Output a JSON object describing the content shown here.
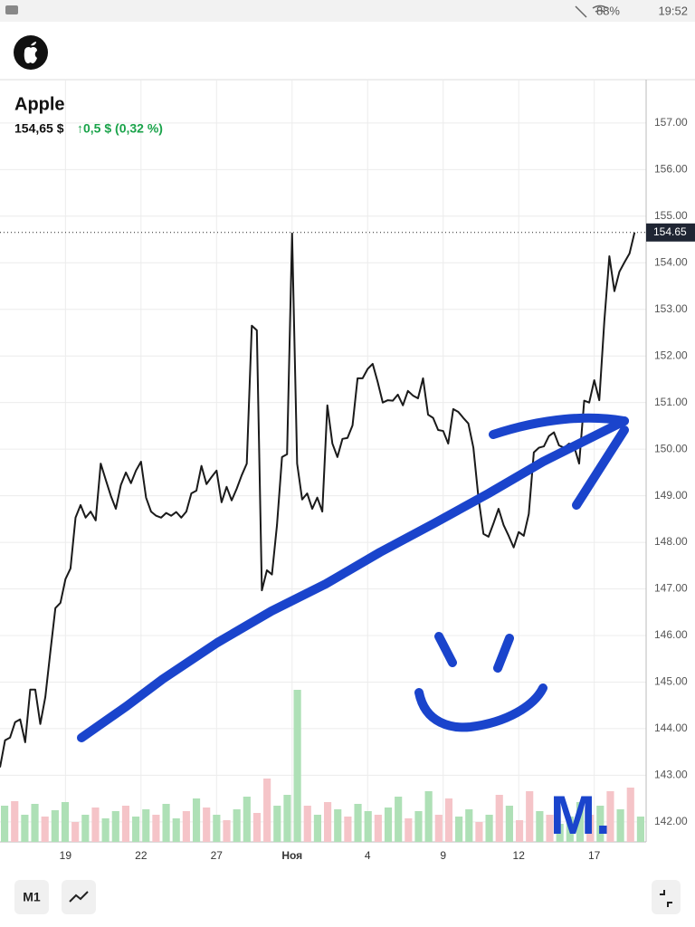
{
  "status_bar": {
    "battery": "88%",
    "time": "19:52"
  },
  "stock": {
    "name": "Apple",
    "price": "154,65 $",
    "change": "↑0,5 $ (0,32 %)"
  },
  "chart_data": {
    "type": "line",
    "color": "#1a1a1a",
    "grid": true,
    "xlim": [
      0,
      128.3
    ],
    "xticks": [
      {
        "value": 13,
        "label": "19"
      },
      {
        "value": 28,
        "label": "22"
      },
      {
        "value": 43,
        "label": "27"
      },
      {
        "value": 58,
        "label": "Ноя"
      },
      {
        "value": 73,
        "label": "4"
      },
      {
        "value": 88,
        "label": "9"
      },
      {
        "value": 103,
        "label": "12"
      },
      {
        "value": 118,
        "label": "17"
      }
    ],
    "ylim": [
      141.57,
      157.93
    ],
    "yticks": [
      {
        "value": 142,
        "label": "142.00"
      },
      {
        "value": 143,
        "label": "143.00"
      },
      {
        "value": 144,
        "label": "144.00"
      },
      {
        "value": 145,
        "label": "145.00"
      },
      {
        "value": 146,
        "label": "146.00"
      },
      {
        "value": 147,
        "label": "147.00"
      },
      {
        "value": 148,
        "label": "148.00"
      },
      {
        "value": 149,
        "label": "149.00"
      },
      {
        "value": 150,
        "label": "150.00"
      },
      {
        "value": 151,
        "label": "151.00"
      },
      {
        "value": 152,
        "label": "152.00"
      },
      {
        "value": 153,
        "label": "153.00"
      },
      {
        "value": 154,
        "label": "154.00"
      },
      {
        "value": 155,
        "label": "155.00"
      },
      {
        "value": 156,
        "label": "156.00"
      },
      {
        "value": 157,
        "label": "157.00"
      }
    ],
    "last_price": {
      "value": 154.65,
      "label": "154.65"
    },
    "values": [
      143.17,
      143.75,
      143.81,
      144.14,
      144.2,
      143.71,
      144.84,
      144.84,
      144.1,
      144.68,
      145.65,
      146.59,
      146.7,
      147.21,
      147.44,
      148.53,
      148.8,
      148.53,
      148.66,
      148.47,
      149.69,
      149.34,
      149,
      148.72,
      149.23,
      149.5,
      149.27,
      149.54,
      149.73,
      148.96,
      148.66,
      148.57,
      148.53,
      148.63,
      148.57,
      148.65,
      148.53,
      148.66,
      149.05,
      149.11,
      149.64,
      149.25,
      149.4,
      149.54,
      148.86,
      149.19,
      148.9,
      149.15,
      149.44,
      149.69,
      152.65,
      152.55,
      146.97,
      147.4,
      147.31,
      148.37,
      149.83,
      149.89,
      154.63,
      149.69,
      148.92,
      149.05,
      148.72,
      148.96,
      148.66,
      150.94,
      150.12,
      149.83,
      150.22,
      150.24,
      150.51,
      151.52,
      151.52,
      151.72,
      151.83,
      151.44,
      151,
      151.05,
      151.04,
      151.17,
      150.94,
      151.25,
      151.15,
      151.09,
      151.52,
      150.74,
      150.67,
      150.41,
      150.39,
      150.12,
      150.86,
      150.8,
      150.67,
      150.55,
      150.03,
      148.96,
      148.18,
      148.12,
      148.41,
      148.72,
      148.37,
      148.14,
      147.89,
      148.22,
      148.14,
      148.61,
      149.93,
      150.03,
      150.06,
      150.28,
      150.36,
      150.08,
      150.03,
      150.12,
      150.06,
      149.69,
      151.04,
      151,
      151.48,
      151.05,
      152.75,
      154.14,
      153.39,
      153.81,
      154.01,
      154.2,
      154.65
    ],
    "volume": [
      {
        "color": "#aee0b6",
        "values": [
          40,
          null,
          30,
          42,
          null,
          35,
          44,
          null,
          30,
          null,
          26,
          34,
          null,
          28,
          36,
          null,
          42,
          26,
          null,
          48,
          null,
          30,
          null,
          36,
          50,
          null,
          null,
          40,
          52,
          168,
          null,
          30,
          null,
          36,
          null,
          42,
          34,
          null,
          38,
          50,
          null,
          34,
          56,
          null,
          null,
          28,
          36,
          null,
          30,
          null,
          40,
          null,
          null,
          34,
          null,
          20,
          28,
          44,
          null,
          40,
          null,
          36,
          null,
          28
        ]
      },
      {
        "color": "#f5c4c8",
        "values": [
          null,
          45,
          null,
          null,
          28,
          null,
          null,
          22,
          null,
          38,
          null,
          null,
          40,
          null,
          null,
          30,
          null,
          null,
          34,
          null,
          38,
          null,
          24,
          null,
          null,
          32,
          70,
          null,
          null,
          null,
          40,
          null,
          44,
          null,
          28,
          null,
          null,
          30,
          null,
          null,
          26,
          null,
          null,
          30,
          48,
          null,
          null,
          22,
          null,
          52,
          null,
          24,
          56,
          null,
          30,
          null,
          null,
          null,
          30,
          null,
          56,
          null,
          60,
          null
        ]
      }
    ]
  },
  "toolbar": {
    "interval": "M1"
  },
  "annotation": "M."
}
